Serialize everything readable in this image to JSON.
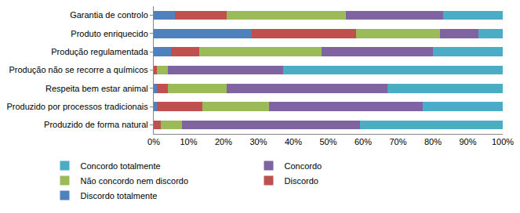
{
  "chart_data": {
    "type": "bar",
    "orientation": "horizontal",
    "stacked": true,
    "grid": false,
    "legend": "bottom",
    "categories": [
      "Garantia de controlo",
      "Produto enriquecido",
      "Produção regulamentada",
      "Produção não se recorre a químicos",
      "Respeita bem estar animal",
      "Produzido por processos tradicionais",
      "Produzido de forma natural"
    ],
    "series": [
      {
        "name": "Discordo totalmente",
        "color": "#4F81BD",
        "values": [
          6,
          28,
          5,
          0,
          1,
          1,
          0
        ]
      },
      {
        "name": "Discordo",
        "color": "#C0504D",
        "values": [
          15,
          30,
          8,
          1,
          3,
          13,
          2
        ]
      },
      {
        "name": "Não concordo nem discordo",
        "color": "#9BBB59",
        "values": [
          34,
          24,
          35,
          3,
          17,
          19,
          6
        ]
      },
      {
        "name": "Concordo",
        "color": "#8064A2",
        "values": [
          28,
          11,
          32,
          33,
          46,
          44,
          51
        ]
      },
      {
        "name": "Concordo totalmente",
        "color": "#4BACC6",
        "values": [
          17,
          7,
          20,
          63,
          33,
          23,
          41
        ]
      }
    ],
    "xlim": [
      0,
      100
    ],
    "xticks": [
      {
        "value": 0,
        "label": "0%"
      },
      {
        "value": 10,
        "label": "10%"
      },
      {
        "value": 20,
        "label": "20%"
      },
      {
        "value": 30,
        "label": "30%"
      },
      {
        "value": 40,
        "label": "40%"
      },
      {
        "value": 50,
        "label": "50%"
      },
      {
        "value": 60,
        "label": "60%"
      },
      {
        "value": 70,
        "label": "70%"
      },
      {
        "value": 80,
        "label": "80%"
      },
      {
        "value": 90,
        "label": "90%"
      },
      {
        "value": 100,
        "label": "100%"
      }
    ]
  }
}
